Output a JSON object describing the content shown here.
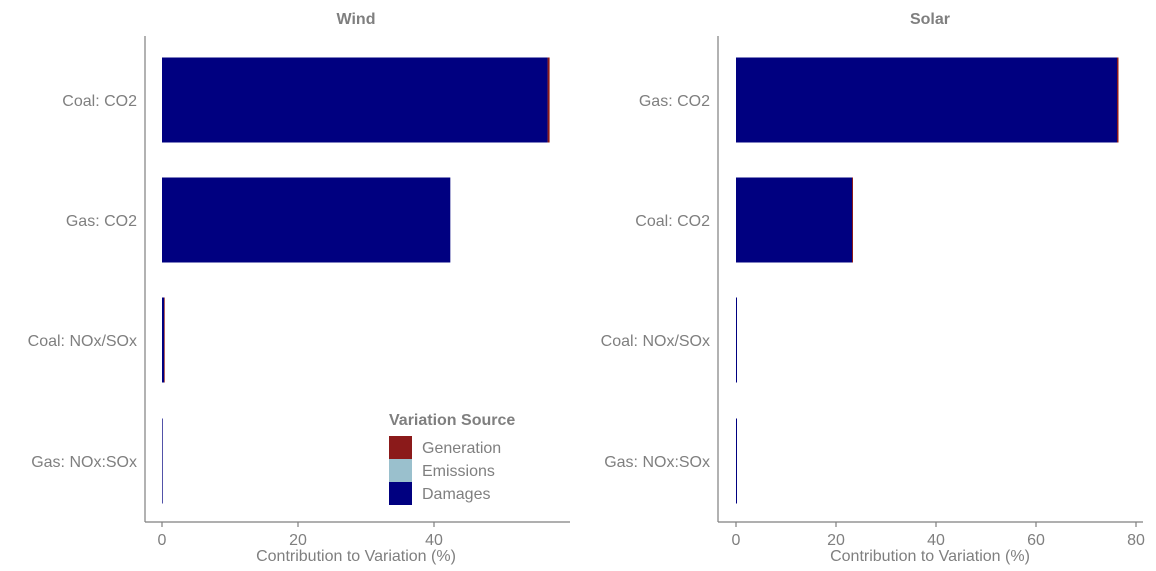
{
  "chart_data": [
    {
      "type": "bar",
      "orientation": "horizontal",
      "stacked": true,
      "title": "Wind",
      "xlabel": "Contribution to Variation (%)",
      "xlim": [
        0,
        60
      ],
      "xticks": [
        0,
        20,
        40
      ],
      "categories": [
        "Coal: CO2",
        "Gas: CO2",
        "Coal: NOx/SOx",
        "Gas: NOx:SOx"
      ],
      "series": [
        {
          "name": "Damages",
          "values": [
            56.7,
            42.4,
            0.3,
            0.1
          ]
        },
        {
          "name": "Emissions",
          "values": [
            0,
            0,
            0,
            0
          ]
        },
        {
          "name": "Generation",
          "values": [
            0.3,
            0,
            0.1,
            0
          ]
        }
      ]
    },
    {
      "type": "bar",
      "orientation": "horizontal",
      "stacked": true,
      "title": "Solar",
      "xlabel": "Contribution to Variation (%)",
      "xlim": [
        0,
        80
      ],
      "xticks": [
        0,
        20,
        40,
        60,
        80
      ],
      "categories": [
        "Gas: CO2",
        "Coal: CO2",
        "Coal: NOx/SOx",
        "Gas: NOx:SOx"
      ],
      "series": [
        {
          "name": "Damages",
          "values": [
            76.2,
            23.2,
            0.2,
            0.2
          ]
        },
        {
          "name": "Emissions",
          "values": [
            0,
            0,
            0,
            0
          ]
        },
        {
          "name": "Generation",
          "values": [
            0.3,
            0.2,
            0,
            0
          ]
        }
      ]
    }
  ],
  "legend": {
    "title": "Variation Source",
    "position": "bottom-right of Wind panel",
    "items": [
      {
        "label": "Generation",
        "color": "#8b1a1a"
      },
      {
        "label": "Emissions",
        "color": "#9ac0cd"
      },
      {
        "label": "Damages",
        "color": "#000080"
      }
    ]
  }
}
